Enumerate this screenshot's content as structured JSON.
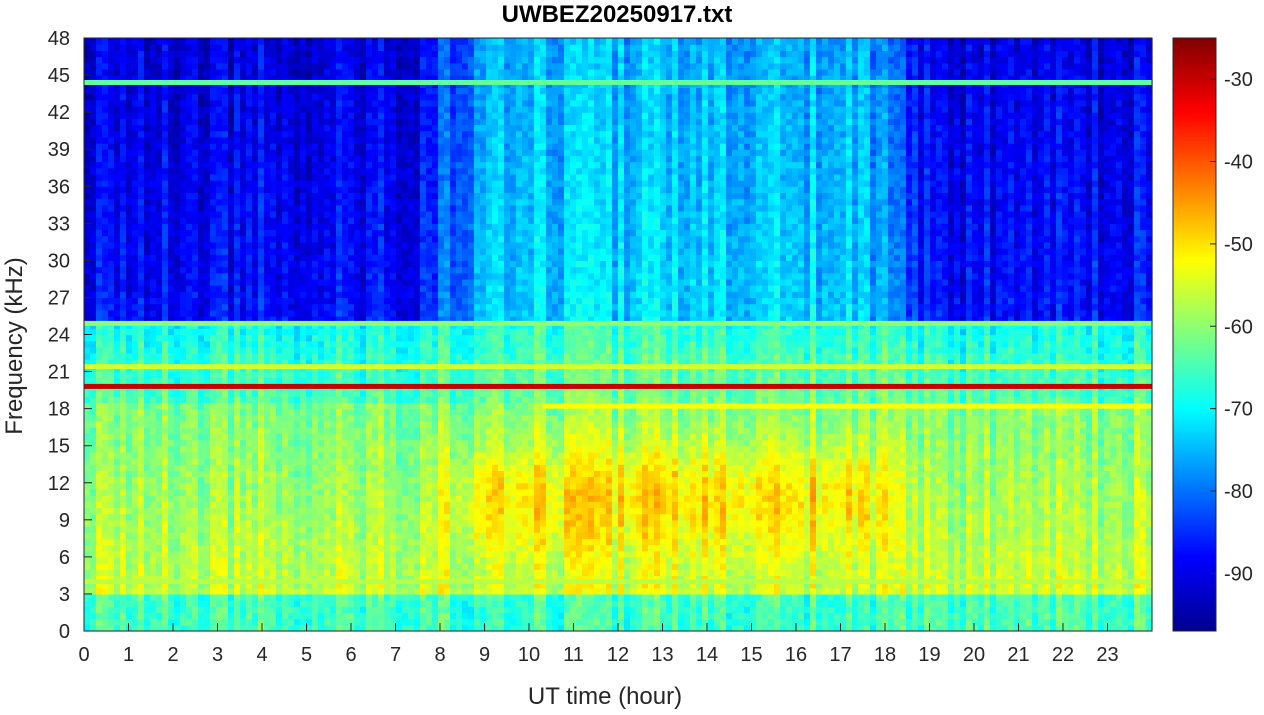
{
  "chart_data": {
    "type": "heatmap",
    "title": "UWBEZ20250917.txt",
    "xlabel": "UT time (hour)",
    "ylabel": "Frequency (kHz)",
    "xlim": [
      0,
      24
    ],
    "ylim": [
      0,
      48
    ],
    "x_ticks": [
      0,
      1,
      2,
      3,
      4,
      5,
      6,
      7,
      8,
      9,
      10,
      11,
      12,
      13,
      14,
      15,
      16,
      17,
      18,
      19,
      20,
      21,
      22,
      23
    ],
    "y_ticks": [
      0,
      3,
      6,
      9,
      12,
      15,
      18,
      21,
      24,
      27,
      30,
      33,
      36,
      39,
      42,
      45,
      48
    ],
    "colorbar": {
      "colormap": "jet",
      "range": [
        -97,
        -25
      ],
      "ticks": [
        -30,
        -40,
        -50,
        -60,
        -70,
        -80,
        -90
      ]
    },
    "background_levels_db": {
      "low_band_0_3kHz_day": -66,
      "mid_band_4_18kHz_night": -58,
      "mid_band_8_14kHz_midday": -50,
      "high_band_25_48kHz_night": -87,
      "high_band_25_48kHz_midday": -73
    },
    "transmitter_lines": [
      {
        "freq_khz": 19.8,
        "start_h": 0,
        "end_h": 24,
        "level_db": -30
      },
      {
        "freq_khz": 18.2,
        "start_h": 10.3,
        "end_h": 24,
        "level_db": -52
      },
      {
        "freq_khz": 21.4,
        "start_h": 0,
        "end_h": 24,
        "level_db": -55
      },
      {
        "freq_khz": 24.9,
        "start_h": 0,
        "end_h": 24,
        "level_db": -60
      },
      {
        "freq_khz": 44.4,
        "start_h": 0,
        "end_h": 24,
        "level_db": -63
      },
      {
        "freq_khz": 4.0,
        "start_h": 0,
        "end_h": 24,
        "level_db": -57
      }
    ]
  }
}
